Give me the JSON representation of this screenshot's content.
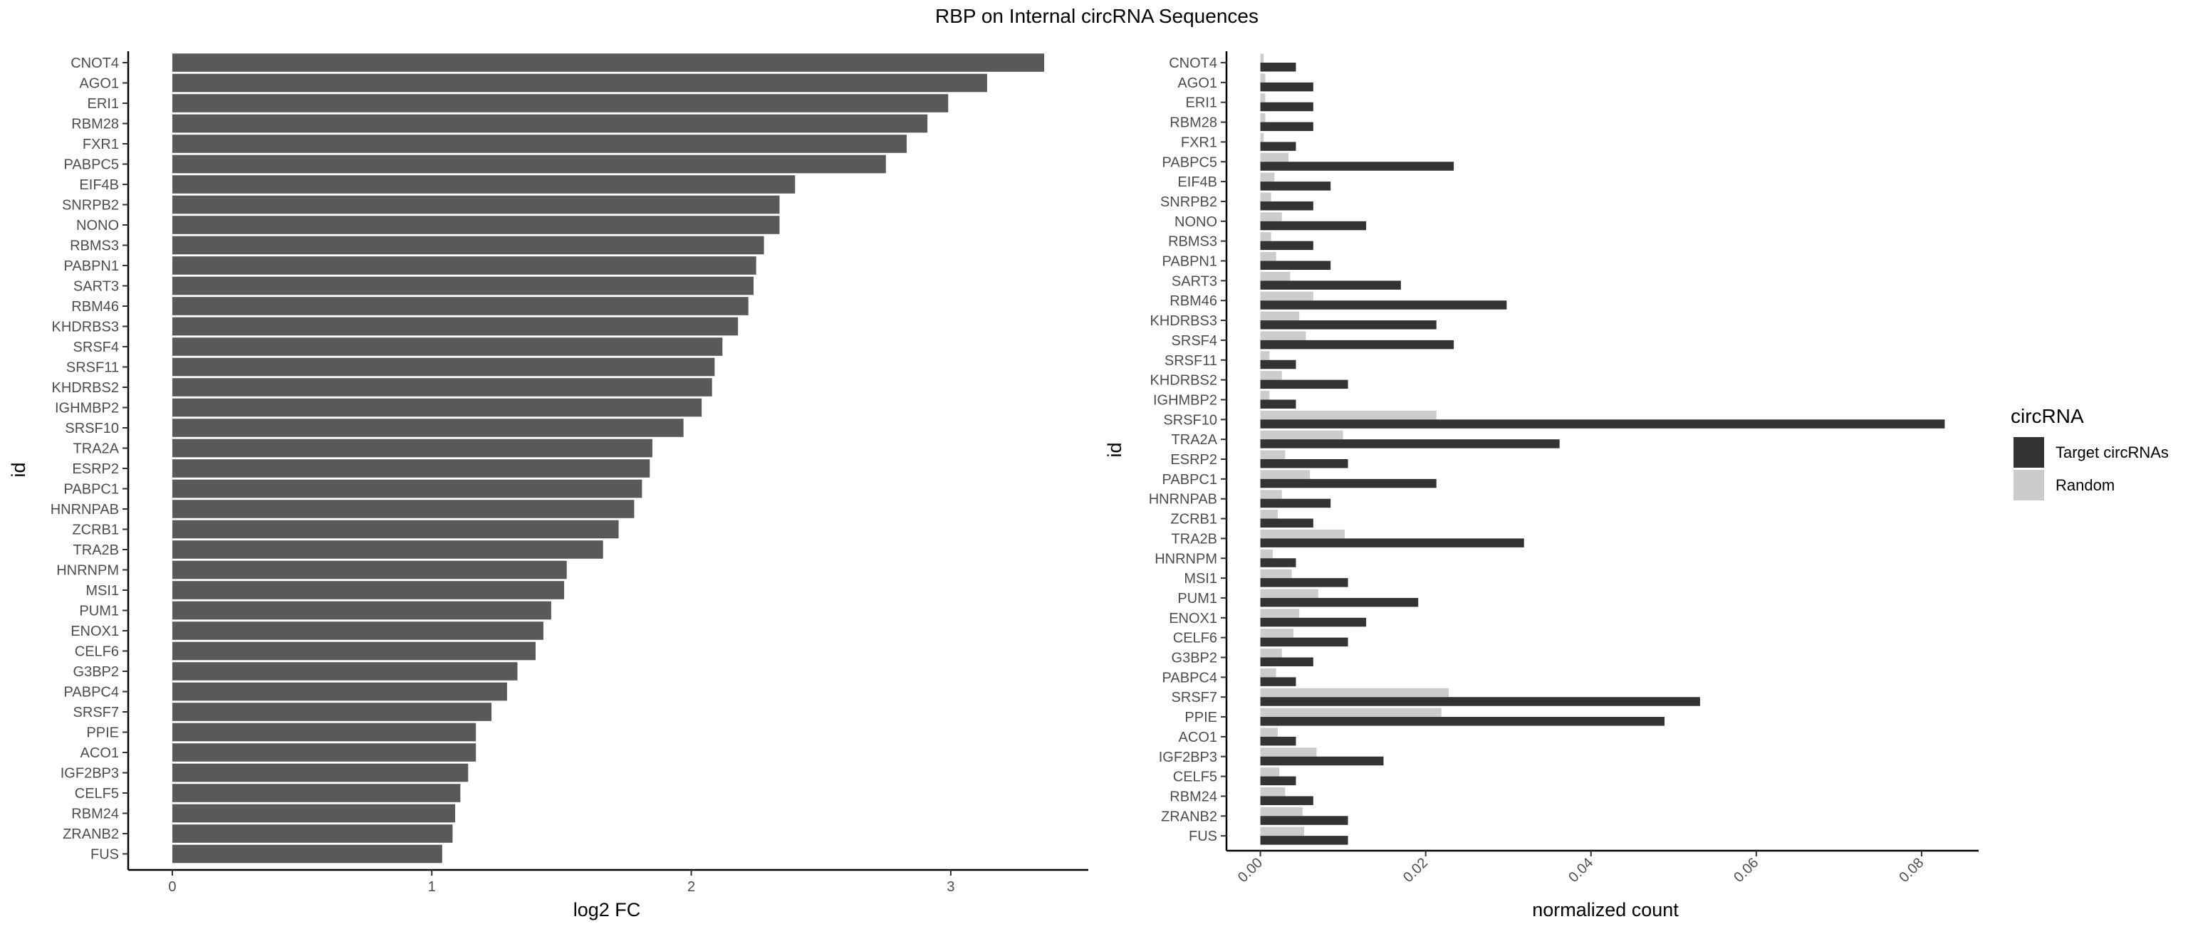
{
  "title": "RBP on Internal circRNA Sequences",
  "colors": {
    "bar_left": "#595959",
    "target": "#333333",
    "random": "#cccccc",
    "axis": "#000000",
    "tick_text": "#4d4d4d"
  },
  "legend": {
    "title": "circRNA",
    "placement": "right",
    "items": [
      {
        "label": "Target circRNAs",
        "color": "#333333"
      },
      {
        "label": "Random",
        "color": "#cccccc"
      }
    ]
  },
  "chart_data": [
    {
      "type": "bar",
      "orientation": "horizontal",
      "xlabel": "log2 FC",
      "ylabel": "id",
      "xlim": [
        -0.17,
        3.53
      ],
      "xticks": [
        "0",
        "1",
        "2",
        "3"
      ],
      "grid": false,
      "categories": [
        "CNOT4",
        "AGO1",
        "ERI1",
        "RBM28",
        "FXR1",
        "PABPC5",
        "EIF4B",
        "SNRPB2",
        "NONO",
        "RBMS3",
        "PABPN1",
        "SART3",
        "RBM46",
        "KHDRBS3",
        "SRSF4",
        "SRSF11",
        "KHDRBS2",
        "IGHMBP2",
        "SRSF10",
        "TRA2A",
        "ESRP2",
        "PABPC1",
        "HNRNPAB",
        "ZCRB1",
        "TRA2B",
        "HNRNPM",
        "MSI1",
        "PUM1",
        "ENOX1",
        "CELF6",
        "G3BP2",
        "PABPC4",
        "SRSF7",
        "PPIE",
        "ACO1",
        "IGF2BP3",
        "CELF5",
        "RBM24",
        "ZRANB2",
        "FUS"
      ],
      "values": [
        3.36,
        3.14,
        2.99,
        2.91,
        2.83,
        2.75,
        2.4,
        2.34,
        2.34,
        2.28,
        2.25,
        2.24,
        2.22,
        2.18,
        2.12,
        2.09,
        2.08,
        2.04,
        1.97,
        1.85,
        1.84,
        1.81,
        1.78,
        1.72,
        1.66,
        1.52,
        1.51,
        1.46,
        1.43,
        1.4,
        1.33,
        1.29,
        1.23,
        1.17,
        1.17,
        1.14,
        1.11,
        1.09,
        1.08,
        1.04
      ]
    },
    {
      "type": "bar",
      "orientation": "horizontal",
      "grouped": true,
      "xlabel": "normalized count",
      "ylabel": "id",
      "xlim": [
        -0.0041,
        0.0869
      ],
      "xticks": [
        "0.00",
        "0.02",
        "0.04",
        "0.06",
        "0.08"
      ],
      "grid": false,
      "categories": [
        "CNOT4",
        "AGO1",
        "ERI1",
        "RBM28",
        "FXR1",
        "PABPC5",
        "EIF4B",
        "SNRPB2",
        "NONO",
        "RBMS3",
        "PABPN1",
        "SART3",
        "RBM46",
        "KHDRBS3",
        "SRSF4",
        "SRSF11",
        "KHDRBS2",
        "IGHMBP2",
        "SRSF10",
        "TRA2A",
        "ESRP2",
        "PABPC1",
        "HNRNPAB",
        "ZCRB1",
        "TRA2B",
        "HNRNPM",
        "MSI1",
        "PUM1",
        "ENOX1",
        "CELF6",
        "G3BP2",
        "PABPC4",
        "SRSF7",
        "PPIE",
        "ACO1",
        "IGF2BP3",
        "CELF5",
        "RBM24",
        "ZRANB2",
        "FUS"
      ],
      "series": [
        {
          "name": "Target circRNAs",
          "values": [
            0.0043,
            0.0064,
            0.0064,
            0.0064,
            0.0043,
            0.0234,
            0.0085,
            0.0064,
            0.0128,
            0.0064,
            0.0085,
            0.017,
            0.0298,
            0.0213,
            0.0234,
            0.0043,
            0.0106,
            0.0043,
            0.0828,
            0.0362,
            0.0106,
            0.0213,
            0.0085,
            0.0064,
            0.0319,
            0.0043,
            0.0106,
            0.0191,
            0.0128,
            0.0106,
            0.0064,
            0.0043,
            0.0532,
            0.0489,
            0.0043,
            0.0149,
            0.0043,
            0.0064,
            0.0106,
            0.0106
          ]
        },
        {
          "name": "Random",
          "values": [
            0.0004,
            0.0006,
            0.0006,
            0.0006,
            0.0004,
            0.0034,
            0.0017,
            0.0013,
            0.0026,
            0.0013,
            0.0019,
            0.0036,
            0.0064,
            0.0047,
            0.0055,
            0.0011,
            0.0026,
            0.0011,
            0.0213,
            0.01,
            0.003,
            0.006,
            0.0026,
            0.0021,
            0.0102,
            0.0015,
            0.0038,
            0.007,
            0.0047,
            0.004,
            0.0026,
            0.0019,
            0.0228,
            0.0219,
            0.0021,
            0.0068,
            0.0023,
            0.003,
            0.0051,
            0.0053
          ]
        }
      ]
    }
  ]
}
